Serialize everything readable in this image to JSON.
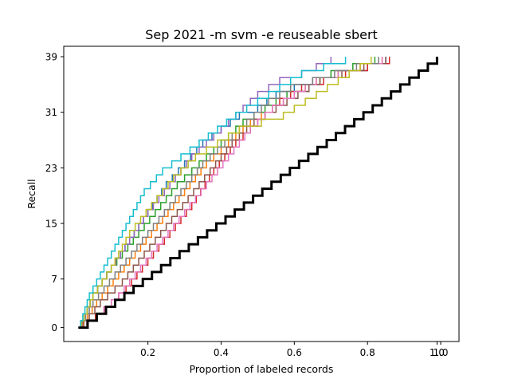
{
  "chart_data": {
    "type": "line",
    "title": "Sep 2021 -m svm -e reuseable sbert",
    "xlabel": "Proportion of labeled records",
    "ylabel": "Recall",
    "xlim": [
      -0.03,
      1.05
    ],
    "ylim": [
      -2,
      40.5
    ],
    "x_ticks": [
      {
        "value": 0.2,
        "label": "0.2"
      },
      {
        "value": 0.4,
        "label": "0.4"
      },
      {
        "value": 0.6,
        "label": "0.6"
      },
      {
        "value": 0.8,
        "label": "0.8"
      },
      {
        "value": 0.99,
        "label": "1.0"
      },
      {
        "value": 1.0,
        "label": "1.0"
      }
    ],
    "y_ticks": [
      {
        "value": 0,
        "label": "0"
      },
      {
        "value": 7,
        "label": "7"
      },
      {
        "value": 15,
        "label": "15"
      },
      {
        "value": 23,
        "label": "23"
      },
      {
        "value": 31,
        "label": "31"
      },
      {
        "value": 39,
        "label": "39"
      }
    ],
    "grid": false,
    "legend": "none",
    "total_relevant": 39,
    "random_baseline": {
      "x": [
        0.01,
        0.99
      ],
      "y": [
        0,
        39
      ],
      "color": "#000000",
      "style": "stepped"
    },
    "series": [
      {
        "color": "#1f77b4",
        "x": [
          0.01,
          0.05,
          0.1,
          0.15,
          0.2,
          0.25,
          0.3,
          0.35,
          0.4,
          0.45,
          0.5,
          0.55,
          0.6,
          0.65,
          0.72,
          0.8,
          0.85
        ],
        "y": [
          0,
          5,
          9,
          13,
          17,
          21,
          24,
          27,
          29,
          31,
          32,
          34,
          35,
          36,
          37,
          38,
          39
        ]
      },
      {
        "color": "#ff7f0e",
        "x": [
          0.01,
          0.06,
          0.12,
          0.18,
          0.24,
          0.3,
          0.36,
          0.42,
          0.48,
          0.54,
          0.6,
          0.66,
          0.72,
          0.78,
          0.84
        ],
        "y": [
          0,
          4,
          8,
          12,
          16,
          20,
          24,
          27,
          30,
          32,
          34,
          36,
          37,
          38,
          39
        ]
      },
      {
        "color": "#2ca02c",
        "x": [
          0.01,
          0.05,
          0.1,
          0.16,
          0.22,
          0.28,
          0.34,
          0.4,
          0.46,
          0.52,
          0.58,
          0.64,
          0.7,
          0.76,
          0.82
        ],
        "y": [
          0,
          5,
          9,
          13,
          17,
          21,
          24,
          27,
          30,
          32,
          34,
          35,
          37,
          38,
          39
        ]
      },
      {
        "color": "#d62728",
        "x": [
          0.01,
          0.08,
          0.14,
          0.2,
          0.26,
          0.32,
          0.38,
          0.44,
          0.5,
          0.56,
          0.62,
          0.68,
          0.74,
          0.8,
          0.86
        ],
        "y": [
          0,
          3,
          6,
          10,
          14,
          18,
          23,
          27,
          30,
          33,
          35,
          36,
          37,
          38,
          39
        ]
      },
      {
        "color": "#9467bd",
        "x": [
          0.01,
          0.05,
          0.1,
          0.15,
          0.2,
          0.26,
          0.32,
          0.38,
          0.44,
          0.5,
          0.56,
          0.62,
          0.66,
          0.7
        ],
        "y": [
          0,
          5,
          9,
          13,
          17,
          21,
          25,
          28,
          31,
          34,
          36,
          37,
          38,
          39
        ]
      },
      {
        "color": "#8c564b",
        "x": [
          0.01,
          0.07,
          0.13,
          0.19,
          0.25,
          0.31,
          0.37,
          0.43,
          0.49,
          0.55,
          0.61,
          0.67,
          0.73,
          0.79,
          0.85
        ],
        "y": [
          0,
          4,
          7,
          11,
          15,
          19,
          23,
          27,
          30,
          32,
          34,
          36,
          37,
          38,
          39
        ]
      },
      {
        "color": "#e377c2",
        "x": [
          0.01,
          0.06,
          0.12,
          0.18,
          0.24,
          0.3,
          0.36,
          0.42,
          0.48,
          0.54,
          0.6,
          0.66,
          0.72,
          0.78,
          0.84
        ],
        "y": [
          0,
          2,
          5,
          9,
          13,
          17,
          21,
          25,
          29,
          32,
          34,
          36,
          37,
          38,
          39
        ]
      },
      {
        "color": "#7f7f7f",
        "x": [
          0.01,
          0.05,
          0.11,
          0.17,
          0.23,
          0.29,
          0.35,
          0.41,
          0.47,
          0.53,
          0.59,
          0.65,
          0.71,
          0.77,
          0.83
        ],
        "y": [
          0,
          4,
          8,
          12,
          16,
          20,
          24,
          27,
          30,
          33,
          35,
          36,
          37,
          38,
          39
        ]
      },
      {
        "color": "#bcbd22",
        "x": [
          0.01,
          0.05,
          0.1,
          0.15,
          0.21,
          0.27,
          0.33,
          0.39,
          0.45,
          0.51,
          0.57,
          0.63,
          0.69,
          0.75,
          0.81
        ],
        "y": [
          0,
          5,
          9,
          14,
          18,
          22,
          25,
          27,
          29,
          30,
          31,
          33,
          35,
          37,
          39
        ]
      },
      {
        "color": "#17becf",
        "x": [
          0.01,
          0.04,
          0.09,
          0.14,
          0.19,
          0.24,
          0.29,
          0.34,
          0.39,
          0.44,
          0.5,
          0.56,
          0.62,
          0.68,
          0.74
        ],
        "y": [
          0,
          5,
          10,
          15,
          20,
          23,
          25,
          27,
          29,
          31,
          33,
          35,
          37,
          38,
          39
        ]
      }
    ]
  }
}
